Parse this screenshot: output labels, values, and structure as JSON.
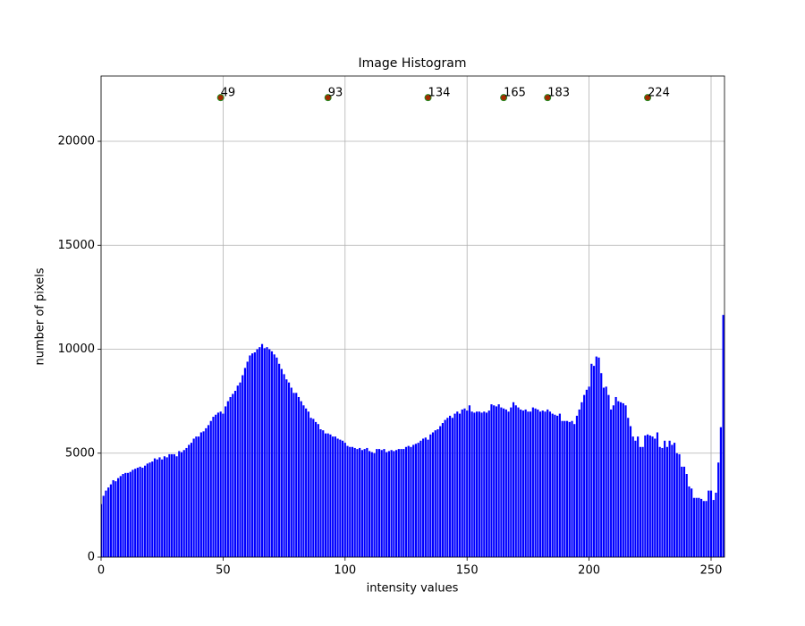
{
  "chart_data": {
    "type": "bar",
    "title": "Image Histogram",
    "xlabel": "intensity values",
    "ylabel": "number of pixels",
    "x": [
      0,
      1,
      2,
      3,
      4,
      5,
      6,
      7,
      8,
      9,
      10,
      11,
      12,
      13,
      14,
      15,
      16,
      17,
      18,
      19,
      20,
      21,
      22,
      23,
      24,
      25,
      26,
      27,
      28,
      29,
      30,
      31,
      32,
      33,
      34,
      35,
      36,
      37,
      38,
      39,
      40,
      41,
      42,
      43,
      44,
      45,
      46,
      47,
      48,
      49,
      50,
      51,
      52,
      53,
      54,
      55,
      56,
      57,
      58,
      59,
      60,
      61,
      62,
      63,
      64,
      65,
      66,
      67,
      68,
      69,
      70,
      71,
      72,
      73,
      74,
      75,
      76,
      77,
      78,
      79,
      80,
      81,
      82,
      83,
      84,
      85,
      86,
      87,
      88,
      89,
      90,
      91,
      92,
      93,
      94,
      95,
      96,
      97,
      98,
      99,
      100,
      101,
      102,
      103,
      104,
      105,
      106,
      107,
      108,
      109,
      110,
      111,
      112,
      113,
      114,
      115,
      116,
      117,
      118,
      119,
      120,
      121,
      122,
      123,
      124,
      125,
      126,
      127,
      128,
      129,
      130,
      131,
      132,
      133,
      134,
      135,
      136,
      137,
      138,
      139,
      140,
      141,
      142,
      143,
      144,
      145,
      146,
      147,
      148,
      149,
      150,
      151,
      152,
      153,
      154,
      155,
      156,
      157,
      158,
      159,
      160,
      161,
      162,
      163,
      164,
      165,
      166,
      167,
      168,
      169,
      170,
      171,
      172,
      173,
      174,
      175,
      176,
      177,
      178,
      179,
      180,
      181,
      182,
      183,
      184,
      185,
      186,
      187,
      188,
      189,
      190,
      191,
      192,
      193,
      194,
      195,
      196,
      197,
      198,
      199,
      200,
      201,
      202,
      203,
      204,
      205,
      206,
      207,
      208,
      209,
      210,
      211,
      212,
      213,
      214,
      215,
      216,
      217,
      218,
      219,
      220,
      221,
      222,
      223,
      224,
      225,
      226,
      227,
      228,
      229,
      230,
      231,
      232,
      233,
      234,
      235,
      236,
      237,
      238,
      239,
      240,
      241,
      242,
      243,
      244,
      245,
      246,
      247,
      248,
      249,
      250,
      251,
      252,
      253,
      254,
      255
    ],
    "values": [
      2550,
      2950,
      3200,
      3350,
      3500,
      3700,
      3650,
      3800,
      3900,
      4000,
      4050,
      4050,
      4100,
      4200,
      4250,
      4300,
      4350,
      4300,
      4400,
      4500,
      4550,
      4600,
      4750,
      4700,
      4800,
      4700,
      4850,
      4800,
      4950,
      4950,
      4950,
      4850,
      5100,
      5050,
      5150,
      5250,
      5400,
      5500,
      5700,
      5800,
      5800,
      6000,
      6050,
      6200,
      6350,
      6550,
      6750,
      6850,
      6950,
      7000,
      6900,
      7250,
      7500,
      7700,
      7850,
      8000,
      8250,
      8400,
      8750,
      9100,
      9400,
      9700,
      9800,
      9850,
      10000,
      10100,
      10250,
      10050,
      10100,
      10000,
      9900,
      9750,
      9600,
      9300,
      9050,
      8800,
      8550,
      8400,
      8150,
      7900,
      7900,
      7700,
      7500,
      7300,
      7150,
      7000,
      6700,
      6650,
      6500,
      6400,
      6150,
      6100,
      5950,
      5950,
      5900,
      5800,
      5800,
      5700,
      5650,
      5600,
      5500,
      5350,
      5300,
      5300,
      5250,
      5200,
      5250,
      5150,
      5200,
      5250,
      5100,
      5050,
      5000,
      5200,
      5200,
      5150,
      5200,
      5050,
      5100,
      5150,
      5100,
      5150,
      5200,
      5200,
      5200,
      5300,
      5350,
      5300,
      5400,
      5450,
      5500,
      5600,
      5700,
      5750,
      5650,
      5900,
      6000,
      6100,
      6150,
      6300,
      6450,
      6600,
      6700,
      6800,
      6700,
      6900,
      7000,
      6900,
      7100,
      7150,
      7050,
      7300,
      7000,
      6950,
      7000,
      7000,
      6950,
      7000,
      6950,
      7050,
      7350,
      7300,
      7250,
      7350,
      7200,
      7150,
      7100,
      7000,
      7200,
      7450,
      7300,
      7200,
      7100,
      7050,
      7100,
      7000,
      7000,
      7200,
      7150,
      7100,
      7000,
      7050,
      7000,
      7100,
      7000,
      6900,
      6850,
      6800,
      6900,
      6550,
      6550,
      6550,
      6500,
      6550,
      6400,
      6800,
      7100,
      7450,
      7800,
      8050,
      8200,
      9300,
      9200,
      9650,
      9600,
      8850,
      8150,
      8200,
      7800,
      7100,
      7300,
      7700,
      7500,
      7450,
      7400,
      7300,
      6700,
      6300,
      5800,
      5600,
      5800,
      5300,
      5300,
      5850,
      5900,
      5850,
      5800,
      5700,
      6000,
      5300,
      5250,
      5600,
      5300,
      5600,
      5400,
      5500,
      5000,
      4950,
      4350,
      4350,
      4000,
      3400,
      3300,
      2850,
      2850,
      2850,
      2800,
      2700,
      2700,
      3200,
      3200,
      2750,
      3100,
      4550,
      6250,
      11650
    ],
    "color": "#0000ff",
    "points": {
      "x": [
        49,
        93,
        134,
        165,
        183,
        224
      ],
      "y": [
        22100,
        22100,
        22100,
        22100,
        22100,
        22100
      ],
      "color": "#a52a00",
      "edgecolor": "#228b22"
    },
    "xlim": [
      0,
      255.5
    ],
    "xticks": [
      0,
      50,
      100,
      150,
      200,
      250
    ],
    "ylim": [
      0,
      23140
    ],
    "yticks": [
      0,
      5000,
      10000,
      15000,
      20000
    ],
    "grid": true
  }
}
